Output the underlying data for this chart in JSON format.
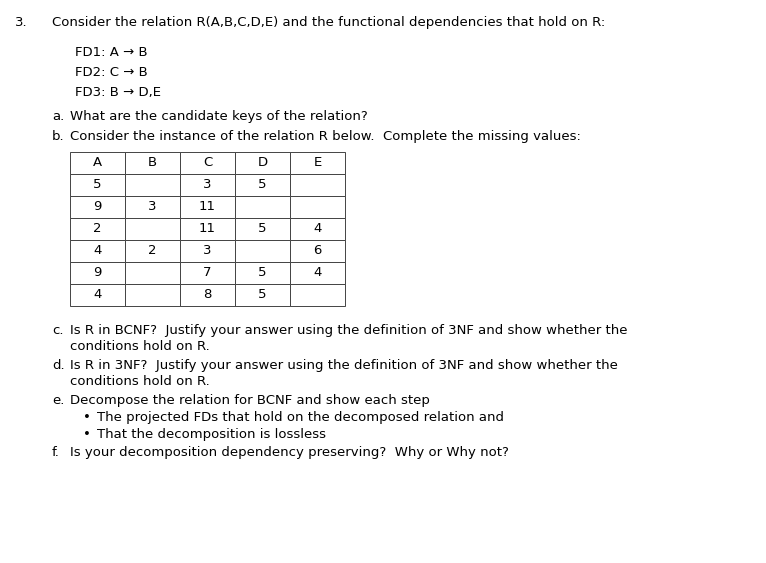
{
  "bg_color": "#ffffff",
  "title_number": "3.",
  "title_text": "Consider the relation R(A,B,C,D,E) and the functional dependencies that hold on R:",
  "fd_lines": [
    "FD1: A → B",
    "FD2: C → B",
    "FD3: B → D,E"
  ],
  "q_a_label": "a.",
  "q_a_text": "What are the candidate keys of the relation?",
  "q_b_label": "b.",
  "q_b_text": "Consider the instance of the relation R below.  Complete the missing values:",
  "table_headers": [
    "A",
    "B",
    "C",
    "D",
    "E"
  ],
  "table_data": [
    [
      "5",
      "",
      "3",
      "5",
      ""
    ],
    [
      "9",
      "3",
      "11",
      "",
      ""
    ],
    [
      "2",
      "",
      "11",
      "5",
      "4"
    ],
    [
      "4",
      "2",
      "3",
      "",
      "6"
    ],
    [
      "9",
      "",
      "7",
      "5",
      "4"
    ],
    [
      "4",
      "",
      "8",
      "5",
      ""
    ]
  ],
  "q_c_label": "c.",
  "q_c_line1": "Is R in BCNF?  Justify your answer using the definition of 3NF and show whether the",
  "q_c_line2": "conditions hold on R.",
  "q_d_label": "d.",
  "q_d_line1": "Is R in 3NF?  Justify your answer using the definition of 3NF and show whether the",
  "q_d_line2": "conditions hold on R.",
  "q_e_label": "e.",
  "q_e_text": "Decompose the relation for BCNF and show each step",
  "bullets": [
    "The projected FDs that hold on the decomposed relation and",
    "That the decomposition is lossless"
  ],
  "q_f_label": "f.",
  "q_f_text": "Is your decomposition dependency preserving?  Why or Why not?",
  "font_size": 9.5
}
